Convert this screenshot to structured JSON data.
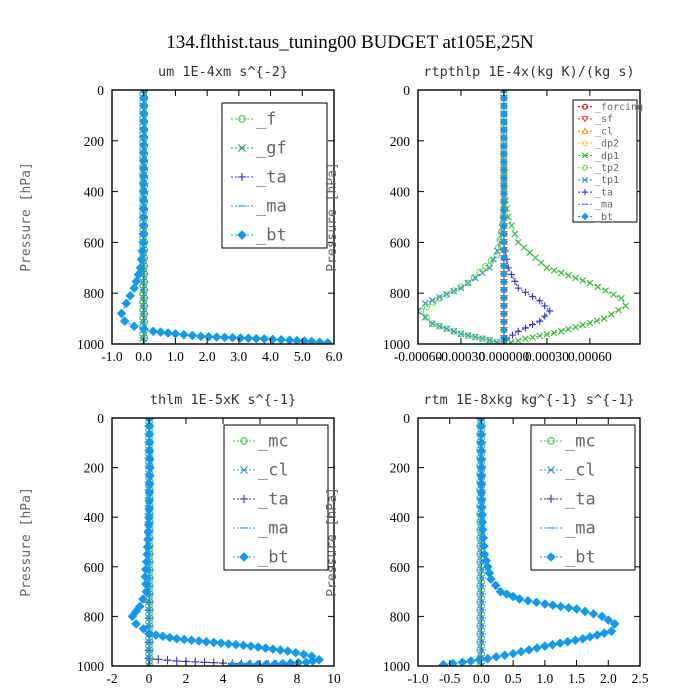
{
  "suptitle": "134.flthist.taus_tuning00  BUDGET at105E,25N",
  "chart_data": [
    {
      "type": "line",
      "title": "um  1E-4xm s^{-2}",
      "ylabel": "Pressure [hPa]",
      "xlim": [
        -1.0,
        6.0
      ],
      "ylim": [
        1000,
        0
      ],
      "xticks": [
        "-1.0",
        "0.0",
        "1.0",
        "2.0",
        "3.0",
        "4.0",
        "5.0",
        "6.0"
      ],
      "xtick_values": [
        -1,
        0,
        1,
        2,
        3,
        4,
        5,
        6
      ],
      "yticks": [
        "0",
        "200",
        "400",
        "600",
        "800",
        "1000"
      ],
      "ytick_values": [
        0,
        200,
        400,
        600,
        800,
        1000
      ],
      "legend_position": "top-right",
      "legend_font": 17,
      "series": [
        {
          "name": "_f",
          "color": "#33cc33",
          "marker": "o",
          "points": [
            [
              0.02,
              0
            ],
            [
              0.02,
              1000
            ]
          ]
        },
        {
          "name": "_gf",
          "color": "#339966",
          "marker": "x",
          "points": [
            [
              -0.02,
              0
            ],
            [
              -0.02,
              1000
            ]
          ]
        },
        {
          "name": "_ta",
          "color": "#3333cc",
          "marker": "+",
          "points": [
            [
              0,
              0
            ],
            [
              0,
              1000
            ]
          ]
        },
        {
          "name": "_ma",
          "color": "#3399ff",
          "marker": "-",
          "points": [
            [
              0,
              0
            ],
            [
              0,
              1000
            ]
          ]
        },
        {
          "name": "_bt",
          "color": "#1199ee",
          "marker": "d",
          "points": [
            [
              0,
              0
            ],
            [
              0,
              400
            ],
            [
              -0.02,
              600
            ],
            [
              -0.1,
              700
            ],
            [
              -0.3,
              780
            ],
            [
              -0.55,
              840
            ],
            [
              -0.7,
              880
            ],
            [
              -0.6,
              910
            ],
            [
              -0.3,
              930
            ],
            [
              0.3,
              950
            ],
            [
              1.0,
              960
            ],
            [
              1.8,
              970
            ],
            [
              2.8,
              975
            ],
            [
              3.8,
              980
            ],
            [
              4.6,
              985
            ],
            [
              5.3,
              990
            ],
            [
              5.8,
              995
            ]
          ]
        }
      ]
    },
    {
      "type": "line",
      "title": "rtpthlp  1E-4x(kg K)/(kg s)",
      "ylabel": "Pressure [hPa]",
      "xlim": [
        -0.0006,
        0.00095
      ],
      "ylim": [
        1000,
        0
      ],
      "xticks": [
        "-0.00060",
        "-0.00030",
        "0.000000",
        "0.00030",
        "0.00060"
      ],
      "xtick_values": [
        -0.0006,
        -0.0003,
        0.0,
        0.0003,
        0.0006
      ],
      "yticks": [
        "0",
        "200",
        "400",
        "600",
        "800",
        "1000"
      ],
      "ytick_values": [
        0,
        200,
        400,
        600,
        800,
        1000
      ],
      "legend_position": "top-right",
      "legend_font": 10,
      "series": [
        {
          "name": "_forcing",
          "color": "#cc0000",
          "marker": "o",
          "points": [
            [
              0,
              0
            ],
            [
              0,
              1000
            ]
          ]
        },
        {
          "name": "_sf",
          "color": "#ff3333",
          "marker": "v",
          "points": [
            [
              0,
              0
            ],
            [
              0,
              1000
            ]
          ]
        },
        {
          "name": "_cl",
          "color": "#ff9900",
          "marker": "^",
          "points": [
            [
              0,
              0
            ],
            [
              0,
              1000
            ]
          ]
        },
        {
          "name": "_dp2",
          "color": "#ffcc33",
          "marker": "o",
          "points": [
            [
              0,
              0
            ],
            [
              0,
              1000
            ]
          ]
        },
        {
          "name": "_dp1",
          "color": "#33bb33",
          "marker": "x",
          "points": [
            [
              0,
              0
            ],
            [
              0,
              400
            ],
            [
              3e-05,
              500
            ],
            [
              0.0001,
              600
            ],
            [
              0.0003,
              700
            ],
            [
              0.0006,
              760
            ],
            [
              0.00082,
              820
            ],
            [
              0.00085,
              850
            ],
            [
              0.0007,
              900
            ],
            [
              0.0004,
              950
            ],
            [
              0.00015,
              980
            ],
            [
              0,
              1000
            ]
          ]
        },
        {
          "name": "_tp2",
          "color": "#66dd33",
          "marker": "o",
          "points": [
            [
              0,
              0
            ],
            [
              0,
              500
            ],
            [
              -5e-05,
              650
            ],
            [
              -0.00025,
              760
            ],
            [
              -0.00045,
              820
            ],
            [
              -0.00058,
              870
            ],
            [
              -0.0005,
              920
            ],
            [
              -0.0003,
              960
            ],
            [
              -0.0001,
              985
            ],
            [
              0,
              1000
            ]
          ]
        },
        {
          "name": "_tp1",
          "color": "#3399cc",
          "marker": "x",
          "points": [
            [
              0,
              0
            ],
            [
              0,
              450
            ],
            [
              -2e-05,
              600
            ],
            [
              -0.0001,
              700
            ],
            [
              -0.0003,
              780
            ],
            [
              -0.00055,
              840
            ],
            [
              -0.0006,
              870
            ],
            [
              -0.0005,
              920
            ],
            [
              -0.0003,
              960
            ],
            [
              -0.0001,
              985
            ],
            [
              0,
              1000
            ]
          ]
        },
        {
          "name": "_ta",
          "color": "#3333cc",
          "marker": "+",
          "points": [
            [
              0,
              0
            ],
            [
              0,
              600
            ],
            [
              3e-05,
              700
            ],
            [
              0.0001,
              780
            ],
            [
              0.00025,
              830
            ],
            [
              0.00032,
              870
            ],
            [
              0.00025,
              910
            ],
            [
              0.0001,
              950
            ],
            [
              2e-05,
              980
            ],
            [
              0,
              1000
            ]
          ]
        },
        {
          "name": "_ma",
          "color": "#3399ff",
          "marker": "-",
          "points": [
            [
              0,
              0
            ],
            [
              0,
              1000
            ]
          ]
        },
        {
          "name": "_bt",
          "color": "#1199ee",
          "marker": "d",
          "points": [
            [
              0,
              0
            ],
            [
              0,
              1000
            ]
          ]
        }
      ]
    },
    {
      "type": "line",
      "title": "thlm  1E-5xK s^{-1}",
      "ylabel": "Pressure [hPa]",
      "xlim": [
        -2,
        10
      ],
      "ylim": [
        1000,
        0
      ],
      "xticks": [
        "-2",
        "0",
        "2",
        "4",
        "6",
        "8",
        "10"
      ],
      "xtick_values": [
        -2,
        0,
        2,
        4,
        6,
        8,
        10
      ],
      "yticks": [
        "0",
        "200",
        "400",
        "600",
        "800",
        "1000"
      ],
      "ytick_values": [
        0,
        200,
        400,
        600,
        800,
        1000
      ],
      "legend_position": "top-right",
      "legend_font": 17,
      "series": [
        {
          "name": "_mc",
          "color": "#33cc33",
          "marker": "o",
          "points": [
            [
              0.04,
              0
            ],
            [
              0.04,
              1000
            ]
          ]
        },
        {
          "name": "_cl",
          "color": "#3399cc",
          "marker": "x",
          "points": [
            [
              0,
              0
            ],
            [
              0,
              1000
            ]
          ]
        },
        {
          "name": "_ta",
          "color": "#3333cc",
          "marker": "+",
          "points": [
            [
              0,
              0
            ],
            [
              0,
              970
            ],
            [
              1.5,
              980
            ],
            [
              3,
              985
            ],
            [
              4.5,
              990
            ],
            [
              6,
              993
            ],
            [
              7.8,
              997
            ]
          ]
        },
        {
          "name": "_ma",
          "color": "#3399ff",
          "marker": "-",
          "points": [
            [
              0,
              0
            ],
            [
              0,
              1000
            ]
          ]
        },
        {
          "name": "_bt",
          "color": "#1199ee",
          "marker": "d",
          "points": [
            [
              0,
              0
            ],
            [
              0.05,
              200
            ],
            [
              0,
              400
            ],
            [
              -0.1,
              550
            ],
            [
              -0.2,
              640
            ],
            [
              -0.15,
              700
            ],
            [
              -0.5,
              760
            ],
            [
              -0.9,
              800
            ],
            [
              -0.7,
              830
            ],
            [
              -0.3,
              850
            ],
            [
              0,
              870
            ],
            [
              1.5,
              890
            ],
            [
              3.5,
              905
            ],
            [
              5.5,
              920
            ],
            [
              7.5,
              940
            ],
            [
              8.8,
              960
            ],
            [
              9.2,
              975
            ],
            [
              8.5,
              985
            ],
            [
              6.8,
              992
            ],
            [
              4.5,
              997
            ]
          ]
        }
      ]
    },
    {
      "type": "line",
      "title": "rtm  1E-8xkg kg^{-1} s^{-1}",
      "ylabel": "Pressure [hPa]",
      "xlim": [
        -1.0,
        2.5
      ],
      "ylim": [
        1000,
        0
      ],
      "xticks": [
        "-1.0",
        "-0.5",
        "0.0",
        "0.5",
        "1.0",
        "1.5",
        "2.0",
        "2.5"
      ],
      "xtick_values": [
        -1,
        -0.5,
        0,
        0.5,
        1,
        1.5,
        2,
        2.5
      ],
      "yticks": [
        "0",
        "200",
        "400",
        "600",
        "800",
        "1000"
      ],
      "ytick_values": [
        0,
        200,
        400,
        600,
        800,
        1000
      ],
      "legend_position": "top-right",
      "legend_font": 17,
      "series": [
        {
          "name": "_mc",
          "color": "#33cc33",
          "marker": "o",
          "points": [
            [
              -0.02,
              0
            ],
            [
              -0.02,
              1000
            ]
          ]
        },
        {
          "name": "_cl",
          "color": "#3399cc",
          "marker": "x",
          "points": [
            [
              0,
              0
            ],
            [
              0,
              1000
            ]
          ]
        },
        {
          "name": "_ta",
          "color": "#3333cc",
          "marker": "+",
          "points": [
            [
              0,
              0
            ],
            [
              0,
              1000
            ]
          ]
        },
        {
          "name": "_ma",
          "color": "#3399ff",
          "marker": "-",
          "points": [
            [
              0,
              0
            ],
            [
              0,
              1000
            ]
          ]
        },
        {
          "name": "_bt",
          "color": "#1199ee",
          "marker": "d",
          "points": [
            [
              0,
              0
            ],
            [
              0,
              300
            ],
            [
              0.02,
              450
            ],
            [
              0.05,
              550
            ],
            [
              0.1,
              600
            ],
            [
              0.15,
              650
            ],
            [
              0.3,
              700
            ],
            [
              0.6,
              730
            ],
            [
              1.0,
              750
            ],
            [
              1.5,
              770
            ],
            [
              1.9,
              800
            ],
            [
              2.1,
              830
            ],
            [
              2.05,
              860
            ],
            [
              1.6,
              890
            ],
            [
              1.0,
              920
            ],
            [
              0.5,
              950
            ],
            [
              0.1,
              970
            ],
            [
              -0.3,
              985
            ],
            [
              -0.6,
              995
            ]
          ]
        }
      ]
    }
  ]
}
